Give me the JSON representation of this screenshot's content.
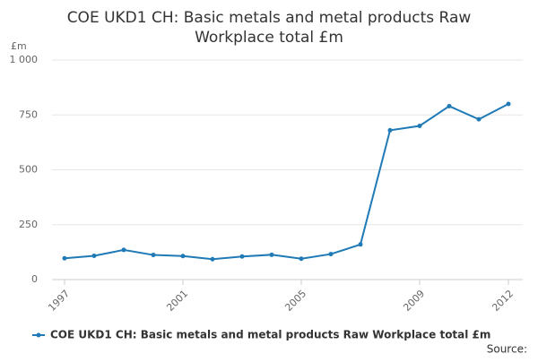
{
  "chart_data": {
    "type": "line",
    "title": "COE UKD1 CH: Basic metals and metal products Raw Workplace total £m",
    "y_label": "£m",
    "x": [
      1997,
      1998,
      1999,
      2000,
      2001,
      2002,
      2003,
      2004,
      2005,
      2006,
      2007,
      2008,
      2009,
      2010,
      2011,
      2012
    ],
    "series": [
      {
        "name": "COE UKD1 CH: Basic metals and metal products Raw Workplace total £m",
        "color": "#1f7ab6",
        "values": [
          97,
          108,
          135,
          112,
          107,
          93,
          105,
          113,
          95,
          116,
          160,
          680,
          700,
          790,
          730,
          800
        ]
      }
    ],
    "xlim": [
      1997,
      2012
    ],
    "xticks": [
      1997,
      2001,
      2005,
      2009,
      2012
    ],
    "ylim": [
      0,
      1000
    ],
    "yticks": [
      0,
      250,
      500,
      750,
      {
        "value": 1000,
        "label": "1 000"
      }
    ],
    "grid": true,
    "legend": "bottom",
    "source": "Source:"
  }
}
